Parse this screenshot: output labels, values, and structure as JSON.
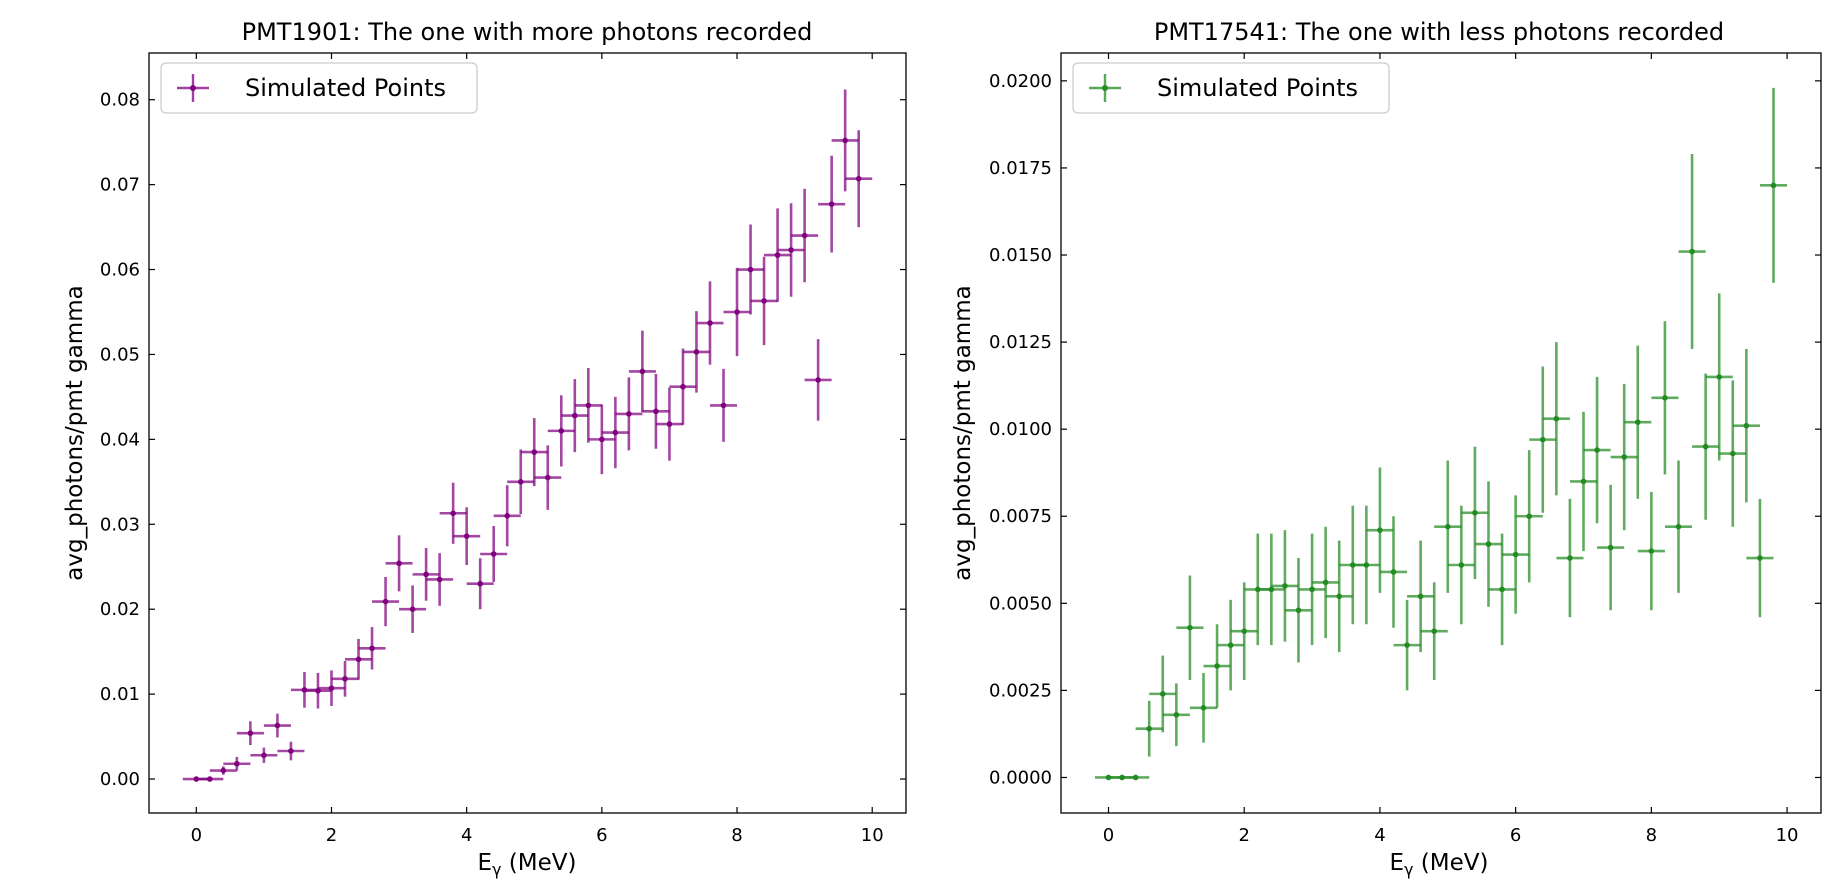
{
  "chart_data": [
    {
      "type": "scatter",
      "title": "PMT1901: The one with more photons recorded",
      "xlabel": "E",
      "xlabel_sub": "γ",
      "xlabel_unit": " (MeV)",
      "ylabel": "avg_photons/pmt gamma",
      "xlim": [
        -0.7,
        10.5
      ],
      "ylim": [
        -0.004,
        0.0855
      ],
      "xticks": [
        0,
        2,
        4,
        6,
        8,
        10
      ],
      "xtick_labels": [
        "0",
        "2",
        "4",
        "6",
        "8",
        "10"
      ],
      "yticks": [
        0.0,
        0.01,
        0.02,
        0.03,
        0.04,
        0.05,
        0.06,
        0.07,
        0.08
      ],
      "ytick_labels": [
        "0.00",
        "0.01",
        "0.02",
        "0.03",
        "0.04",
        "0.05",
        "0.06",
        "0.07",
        "0.08"
      ],
      "grid": false,
      "legend_position": "top-left",
      "color": "#800080",
      "series": [
        {
          "name": "Simulated Points",
          "x": [
            0,
            0.2,
            0.4,
            0.6,
            0.8,
            1.0,
            1.2,
            1.4,
            1.6,
            1.8,
            2.0,
            2.2,
            2.4,
            2.6,
            2.8,
            3.0,
            3.2,
            3.4,
            3.6,
            3.8,
            4.0,
            4.2,
            4.4,
            4.6,
            4.8,
            5.0,
            5.2,
            5.4,
            5.6,
            5.8,
            6.0,
            6.2,
            6.4,
            6.6,
            6.8,
            7.0,
            7.2,
            7.4,
            7.6,
            7.8,
            8.0,
            8.2,
            8.4,
            8.6,
            8.8,
            9.0,
            9.2,
            9.4,
            9.6,
            9.8
          ],
          "y": [
            0.0,
            0.0,
            0.001,
            0.0018,
            0.0054,
            0.0028,
            0.0063,
            0.0033,
            0.0105,
            0.0104,
            0.0107,
            0.0118,
            0.0141,
            0.0154,
            0.0209,
            0.0254,
            0.02,
            0.0241,
            0.0235,
            0.0313,
            0.0286,
            0.023,
            0.0265,
            0.031,
            0.035,
            0.0385,
            0.0355,
            0.041,
            0.0428,
            0.044,
            0.04,
            0.0408,
            0.043,
            0.048,
            0.0433,
            0.0418,
            0.0462,
            0.0503,
            0.0537,
            0.044,
            0.055,
            0.06,
            0.0563,
            0.0617,
            0.0623,
            0.064,
            0.047,
            0.0677,
            0.0752,
            0.0707
          ],
          "yerr": [
            0.0,
            0.0,
            0.0005,
            0.0008,
            0.0014,
            0.0009,
            0.0014,
            0.0011,
            0.0021,
            0.0021,
            0.0021,
            0.0021,
            0.0024,
            0.0025,
            0.0029,
            0.0033,
            0.0028,
            0.0031,
            0.0031,
            0.0036,
            0.0034,
            0.003,
            0.0033,
            0.0036,
            0.0038,
            0.004,
            0.0038,
            0.0042,
            0.0043,
            0.0044,
            0.0041,
            0.0042,
            0.0043,
            0.0048,
            0.0044,
            0.0043,
            0.0045,
            0.0048,
            0.0049,
            0.0043,
            0.0052,
            0.0053,
            0.0052,
            0.0055,
            0.0055,
            0.0055,
            0.0048,
            0.0057,
            0.006,
            0.0057
          ],
          "xerr": 0.2
        }
      ]
    },
    {
      "type": "scatter",
      "title": "PMT17541: The one with less photons recorded",
      "xlabel": "E",
      "xlabel_sub": "γ",
      "xlabel_unit": " (MeV)",
      "ylabel": "avg_photons/pmt gamma",
      "xlim": [
        -0.7,
        10.5
      ],
      "ylim": [
        -0.00102,
        0.0208
      ],
      "xticks": [
        0,
        2,
        4,
        6,
        8,
        10
      ],
      "xtick_labels": [
        "0",
        "2",
        "4",
        "6",
        "8",
        "10"
      ],
      "yticks": [
        0.0,
        0.0025,
        0.005,
        0.0075,
        0.01,
        0.0125,
        0.015,
        0.0175,
        0.02
      ],
      "ytick_labels": [
        "0.0000",
        "0.0025",
        "0.0050",
        "0.0075",
        "0.0100",
        "0.0125",
        "0.0150",
        "0.0175",
        "0.0200"
      ],
      "grid": false,
      "legend_position": "top-left",
      "color": "#228b22",
      "series": [
        {
          "name": "Simulated Points",
          "x": [
            0,
            0.2,
            0.4,
            0.6,
            0.8,
            1.0,
            1.2,
            1.4,
            1.6,
            1.8,
            2.0,
            2.2,
            2.4,
            2.6,
            2.8,
            3.0,
            3.2,
            3.4,
            3.6,
            3.8,
            4.0,
            4.2,
            4.4,
            4.6,
            4.8,
            5.0,
            5.2,
            5.4,
            5.6,
            5.8,
            6.0,
            6.2,
            6.4,
            6.6,
            6.8,
            7.0,
            7.2,
            7.4,
            7.6,
            7.8,
            8.0,
            8.2,
            8.4,
            8.6,
            8.8,
            9.0,
            9.2,
            9.4,
            9.6,
            9.8
          ],
          "y": [
            0.0,
            0.0,
            0.0,
            0.0014,
            0.0024,
            0.0018,
            0.0043,
            0.002,
            0.0032,
            0.0038,
            0.0042,
            0.0054,
            0.0054,
            0.0055,
            0.0048,
            0.0054,
            0.0056,
            0.0052,
            0.0061,
            0.0061,
            0.0071,
            0.0059,
            0.0038,
            0.0052,
            0.0042,
            0.0072,
            0.0061,
            0.0076,
            0.0067,
            0.0054,
            0.0064,
            0.0075,
            0.0097,
            0.0103,
            0.0063,
            0.0085,
            0.0094,
            0.0066,
            0.0092,
            0.0102,
            0.0065,
            0.0109,
            0.0072,
            0.0151,
            0.0095,
            0.0115,
            0.0093,
            0.0101,
            0.0063,
            0.017
          ],
          "yerr": [
            0.0,
            0.0,
            0.0,
            0.0008,
            0.0011,
            0.0009,
            0.0015,
            0.001,
            0.0012,
            0.0013,
            0.0014,
            0.0016,
            0.0016,
            0.0016,
            0.0015,
            0.0016,
            0.0016,
            0.0016,
            0.0017,
            0.0017,
            0.0018,
            0.0016,
            0.0013,
            0.0016,
            0.0014,
            0.0019,
            0.0017,
            0.0019,
            0.0018,
            0.0016,
            0.0017,
            0.0019,
            0.0021,
            0.0022,
            0.0017,
            0.002,
            0.0021,
            0.0018,
            0.0021,
            0.0022,
            0.0017,
            0.0022,
            0.0019,
            0.0028,
            0.0021,
            0.0024,
            0.0021,
            0.0022,
            0.0017,
            0.0028
          ],
          "xerr": 0.2
        }
      ]
    }
  ]
}
